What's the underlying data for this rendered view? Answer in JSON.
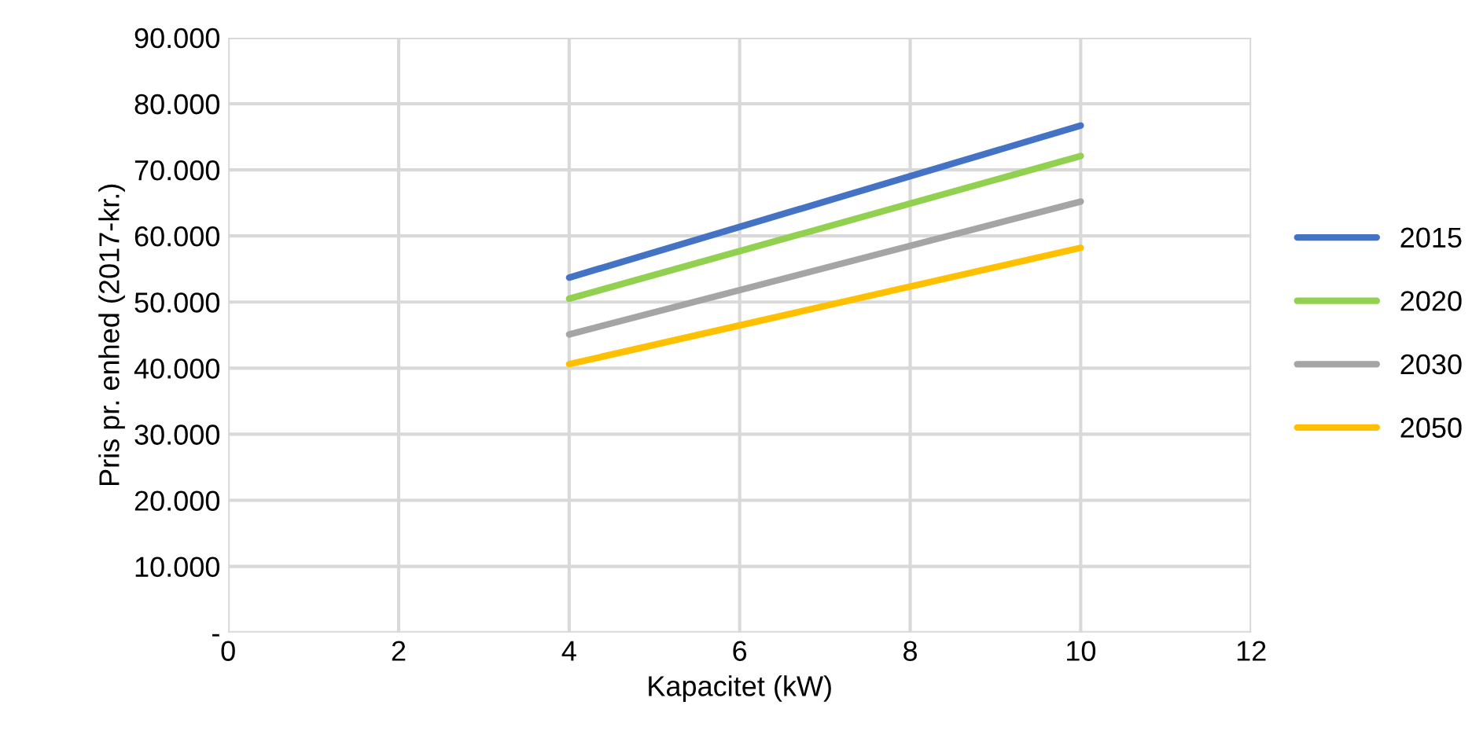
{
  "chart_data": {
    "type": "line",
    "xlabel": "Kapacitet (kW)",
    "ylabel": "Pris pr. enhed (2017-kr.)",
    "x": [
      4,
      10
    ],
    "series": [
      {
        "name": "2015",
        "color": "#4472c4",
        "values": [
          53700,
          76700
        ]
      },
      {
        "name": "2020",
        "color": "#92d050",
        "values": [
          50500,
          72100
        ]
      },
      {
        "name": "2030",
        "color": "#a5a5a5",
        "values": [
          45100,
          65200
        ]
      },
      {
        "name": "2050",
        "color": "#ffc000",
        "values": [
          40600,
          58200
        ]
      }
    ],
    "xlim": [
      0,
      12
    ],
    "xticks": [
      0,
      2,
      4,
      6,
      8,
      10,
      12
    ],
    "ylim": [
      0,
      90000
    ],
    "yticks": [
      {
        "value": 0,
        "label": "-"
      },
      {
        "value": 10000,
        "label": "10.000"
      },
      {
        "value": 20000,
        "label": "20.000"
      },
      {
        "value": 30000,
        "label": "30.000"
      },
      {
        "value": 40000,
        "label": "40.000"
      },
      {
        "value": 50000,
        "label": "50.000"
      },
      {
        "value": 60000,
        "label": "60.000"
      },
      {
        "value": 70000,
        "label": "70.000"
      },
      {
        "value": 80000,
        "label": "80.000"
      },
      {
        "value": 90000,
        "label": "90.000"
      }
    ],
    "grid": true,
    "legend": "right",
    "marker": "none",
    "line_style": "solid"
  }
}
